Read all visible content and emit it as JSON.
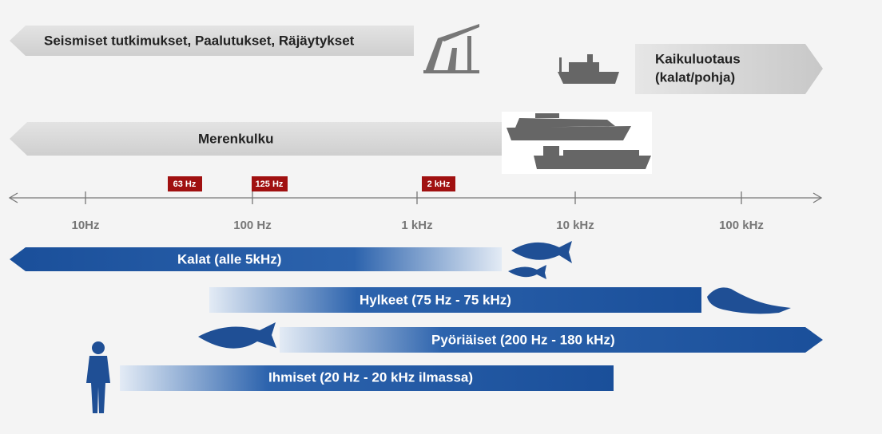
{
  "top_bars": {
    "seismic": "Seismiset tutkimukset, Paalutukset, Räjäytykset",
    "echo_line1": "Kaikuluotaus",
    "echo_line2": "(kalat/pohja)",
    "shipping": "Merenkulku"
  },
  "markers": [
    "63 Hz",
    "125 Hz",
    "2 kHz"
  ],
  "axis": {
    "ticks": [
      "10Hz",
      "100 Hz",
      "1 kHz",
      "10 kHz",
      "100 kHz"
    ]
  },
  "ranges": {
    "fish": "Kalat  (alle 5kHz)",
    "seals": "Hylkeet (75 Hz - 75 kHz)",
    "porpoises": "Pyöriäiset (200 Hz - 180 kHz)",
    "humans": "Ihmiset (20 Hz - 20 kHz ilmassa)"
  }
}
